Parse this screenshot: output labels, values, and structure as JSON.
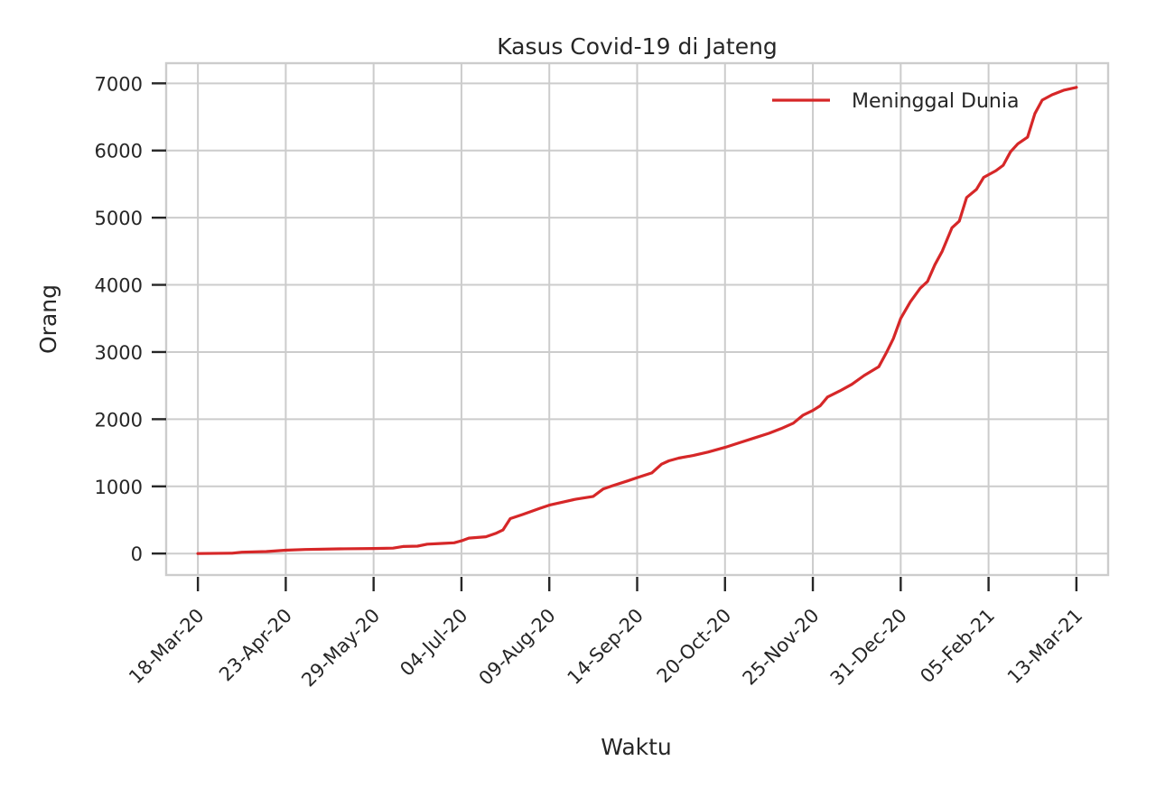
{
  "chart_data": {
    "type": "line",
    "title": "Kasus Covid-19 di Jateng",
    "xlabel": "Waktu",
    "ylabel": "Orang",
    "x_type": "date",
    "xlim": [
      "2020-03-05",
      "2021-03-26"
    ],
    "ylim": [
      -320,
      7300
    ],
    "x_ticks": [
      {
        "date": "2020-03-18",
        "label": "18-Mar-20"
      },
      {
        "date": "2020-04-23",
        "label": "23-Apr-20"
      },
      {
        "date": "2020-05-29",
        "label": "29-May-20"
      },
      {
        "date": "2020-07-04",
        "label": "04-Jul-20"
      },
      {
        "date": "2020-08-09",
        "label": "09-Aug-20"
      },
      {
        "date": "2020-09-14",
        "label": "14-Sep-20"
      },
      {
        "date": "2020-10-20",
        "label": "20-Oct-20"
      },
      {
        "date": "2020-11-25",
        "label": "25-Nov-20"
      },
      {
        "date": "2020-12-31",
        "label": "31-Dec-20"
      },
      {
        "date": "2021-02-05",
        "label": "05-Feb-21"
      },
      {
        "date": "2021-03-13",
        "label": "13-Mar-21"
      }
    ],
    "y_ticks": [
      0,
      1000,
      2000,
      3000,
      4000,
      5000,
      6000,
      7000
    ],
    "grid": true,
    "legend_position": "top-right",
    "series": [
      {
        "name": "Meninggal Dunia",
        "color": "#d62728",
        "points": [
          [
            "2020-03-18",
            0
          ],
          [
            "2020-04-01",
            5
          ],
          [
            "2020-04-05",
            20
          ],
          [
            "2020-04-15",
            30
          ],
          [
            "2020-04-23",
            50
          ],
          [
            "2020-05-01",
            60
          ],
          [
            "2020-05-15",
            70
          ],
          [
            "2020-05-29",
            75
          ],
          [
            "2020-06-06",
            80
          ],
          [
            "2020-06-10",
            105
          ],
          [
            "2020-06-16",
            110
          ],
          [
            "2020-06-20",
            140
          ],
          [
            "2020-06-26",
            150
          ],
          [
            "2020-07-01",
            160
          ],
          [
            "2020-07-04",
            190
          ],
          [
            "2020-07-07",
            230
          ],
          [
            "2020-07-14",
            250
          ],
          [
            "2020-07-18",
            300
          ],
          [
            "2020-07-21",
            350
          ],
          [
            "2020-07-24",
            520
          ],
          [
            "2020-07-29",
            580
          ],
          [
            "2020-08-01",
            620
          ],
          [
            "2020-08-05",
            670
          ],
          [
            "2020-08-09",
            720
          ],
          [
            "2020-08-15",
            770
          ],
          [
            "2020-08-20",
            810
          ],
          [
            "2020-08-27",
            850
          ],
          [
            "2020-08-31",
            960
          ],
          [
            "2020-09-04",
            1010
          ],
          [
            "2020-09-10",
            1080
          ],
          [
            "2020-09-14",
            1130
          ],
          [
            "2020-09-20",
            1200
          ],
          [
            "2020-09-24",
            1330
          ],
          [
            "2020-09-27",
            1380
          ],
          [
            "2020-10-01",
            1420
          ],
          [
            "2020-10-07",
            1460
          ],
          [
            "2020-10-13",
            1510
          ],
          [
            "2020-10-20",
            1580
          ],
          [
            "2020-10-26",
            1650
          ],
          [
            "2020-11-01",
            1720
          ],
          [
            "2020-11-07",
            1790
          ],
          [
            "2020-11-12",
            1860
          ],
          [
            "2020-11-17",
            1940
          ],
          [
            "2020-11-21",
            2060
          ],
          [
            "2020-11-25",
            2130
          ],
          [
            "2020-11-28",
            2200
          ],
          [
            "2020-12-01",
            2330
          ],
          [
            "2020-12-06",
            2420
          ],
          [
            "2020-12-11",
            2520
          ],
          [
            "2020-12-16",
            2650
          ],
          [
            "2020-12-22",
            2780
          ],
          [
            "2020-12-25",
            2980
          ],
          [
            "2020-12-28",
            3200
          ],
          [
            "2020-12-31",
            3500
          ],
          [
            "2021-01-04",
            3750
          ],
          [
            "2021-01-08",
            3950
          ],
          [
            "2021-01-11",
            4050
          ],
          [
            "2021-01-14",
            4300
          ],
          [
            "2021-01-17",
            4500
          ],
          [
            "2021-01-21",
            4850
          ],
          [
            "2021-01-24",
            4950
          ],
          [
            "2021-01-27",
            5300
          ],
          [
            "2021-01-31",
            5420
          ],
          [
            "2021-02-03",
            5600
          ],
          [
            "2021-02-08",
            5700
          ],
          [
            "2021-02-11",
            5780
          ],
          [
            "2021-02-14",
            5980
          ],
          [
            "2021-02-17",
            6100
          ],
          [
            "2021-02-21",
            6200
          ],
          [
            "2021-02-24",
            6550
          ],
          [
            "2021-02-27",
            6750
          ],
          [
            "2021-03-03",
            6830
          ],
          [
            "2021-03-08",
            6900
          ],
          [
            "2021-03-13",
            6940
          ]
        ]
      }
    ]
  }
}
